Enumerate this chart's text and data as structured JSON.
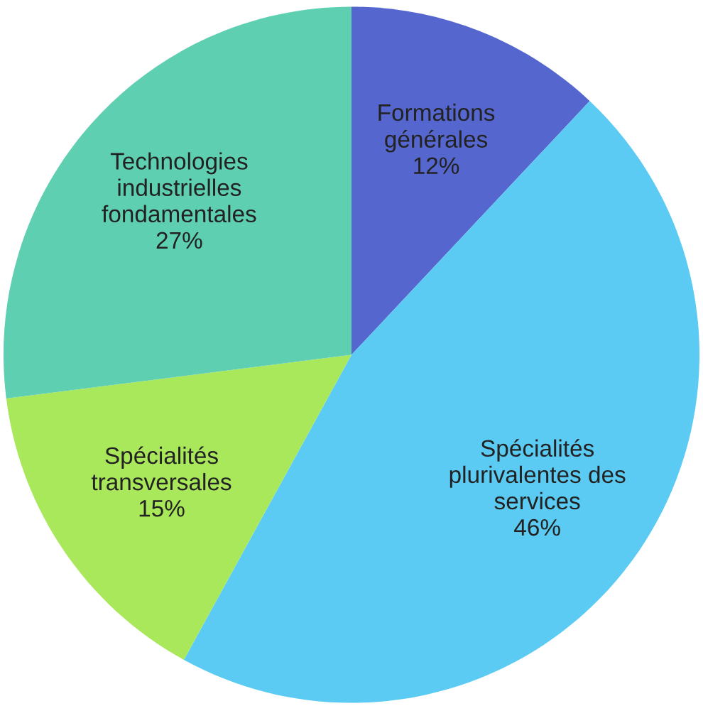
{
  "chart_data": {
    "type": "pie",
    "categories": [
      "Formations\ngénérales",
      "Spécialités\nplurivalentes des\nservices",
      "Spécialités\ntransversales",
      "Technologies\nindustrielles\nfondamentales"
    ],
    "values": [
      12,
      46,
      15,
      27
    ],
    "value_labels": [
      "12%",
      "46%",
      "15%",
      "27%"
    ],
    "colors": [
      "#5567cf",
      "#5ccbf3",
      "#a9e75b",
      "#5fcfb2"
    ]
  }
}
